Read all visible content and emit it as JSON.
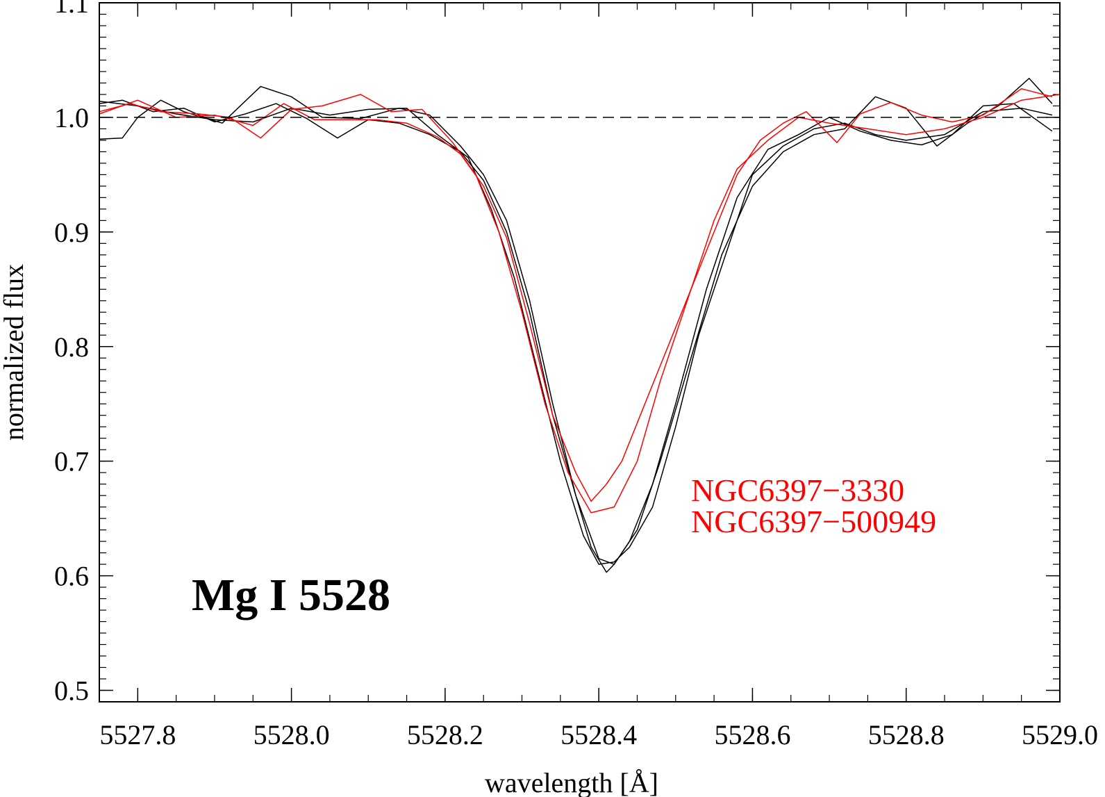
{
  "chart_data": {
    "type": "line",
    "title": "Mg I 5528",
    "xlabel": "wavelength [Å]",
    "ylabel": "normalized flux",
    "xlim": [
      5527.75,
      5529.0
    ],
    "ylim": [
      0.49,
      1.1
    ],
    "x_ticks": [
      5527.8,
      5528.0,
      5528.2,
      5528.4,
      5528.6,
      5528.8,
      5529.0
    ],
    "x_tick_labels": [
      "5527.8",
      "5528.0",
      "5528.2",
      "5528.4",
      "5528.6",
      "5528.8",
      "5529.0"
    ],
    "y_ticks": [
      0.5,
      0.6,
      0.7,
      0.8,
      0.9,
      1.0,
      1.1
    ],
    "y_tick_labels": [
      "0.5",
      "0.6",
      "0.7",
      "0.8",
      "0.9",
      "1.0",
      "1.1"
    ],
    "continuum": 1.0,
    "legend": [
      {
        "label": "NGC6397−3330",
        "color": "#ff0000"
      },
      {
        "label": "NGC6397−500949",
        "color": "#ff0000"
      }
    ],
    "colors": {
      "black": "#000000",
      "red": "#ff0000"
    },
    "series": [
      {
        "name": "black-1",
        "color": "#000000",
        "x": [
          5527.75,
          5527.78,
          5527.8,
          5527.83,
          5527.86,
          5527.91,
          5527.96,
          5528.0,
          5528.04,
          5528.09,
          5528.14,
          5528.18,
          5528.22,
          5528.25,
          5528.28,
          5528.31,
          5528.34,
          5528.37,
          5528.39,
          5528.41,
          5528.42,
          5528.44,
          5528.47,
          5528.5,
          5528.54,
          5528.58,
          5528.62,
          5528.66,
          5528.7,
          5528.74,
          5528.78,
          5528.82,
          5528.86,
          5528.9,
          5528.94,
          5528.99
        ],
        "y": [
          0.981,
          0.982,
          1.0,
          1.015,
          1.005,
          0.995,
          1.027,
          1.018,
          1.0,
          0.999,
          1.008,
          1.002,
          0.975,
          0.95,
          0.91,
          0.84,
          0.75,
          0.67,
          0.625,
          0.603,
          0.61,
          0.63,
          0.68,
          0.75,
          0.85,
          0.93,
          0.972,
          0.985,
          1.0,
          0.988,
          0.98,
          0.976,
          0.985,
          1.01,
          1.012,
          0.988
        ]
      },
      {
        "name": "black-2",
        "color": "#000000",
        "x": [
          5527.75,
          5527.78,
          5527.82,
          5527.86,
          5527.9,
          5527.94,
          5527.98,
          5528.02,
          5528.06,
          5528.1,
          5528.14,
          5528.18,
          5528.22,
          5528.25,
          5528.28,
          5528.31,
          5528.34,
          5528.37,
          5528.4,
          5528.42,
          5528.45,
          5528.48,
          5528.52,
          5528.56,
          5528.6,
          5528.64,
          5528.68,
          5528.72,
          5528.76,
          5528.8,
          5528.84,
          5528.88,
          5528.92,
          5528.96,
          5528.99
        ],
        "y": [
          1.012,
          1.015,
          1.005,
          1.008,
          0.996,
          1.003,
          1.012,
          0.999,
          0.982,
          0.998,
          0.995,
          0.985,
          0.97,
          0.945,
          0.9,
          0.83,
          0.74,
          0.67,
          0.615,
          0.61,
          0.64,
          0.7,
          0.79,
          0.88,
          0.94,
          0.97,
          0.985,
          0.99,
          1.018,
          1.008,
          0.975,
          0.995,
          1.01,
          1.034,
          1.012
        ]
      },
      {
        "name": "black-3",
        "color": "#000000",
        "x": [
          5527.75,
          5527.8,
          5527.85,
          5527.9,
          5527.95,
          5528.0,
          5528.05,
          5528.1,
          5528.15,
          5528.19,
          5528.23,
          5528.26,
          5528.29,
          5528.32,
          5528.35,
          5528.38,
          5528.4,
          5528.42,
          5528.44,
          5528.47,
          5528.5,
          5528.53,
          5528.57,
          5528.6,
          5528.64,
          5528.68,
          5528.72,
          5528.76,
          5528.8,
          5528.85,
          5528.9,
          5528.95,
          5528.99
        ],
        "y": [
          1.014,
          1.01,
          1.003,
          0.998,
          0.996,
          1.008,
          1.002,
          1.007,
          1.008,
          0.985,
          0.965,
          0.92,
          0.86,
          0.78,
          0.7,
          0.635,
          0.61,
          0.612,
          0.625,
          0.66,
          0.73,
          0.81,
          0.89,
          0.95,
          0.975,
          0.99,
          0.995,
          0.985,
          0.98,
          0.985,
          1.005,
          1.008,
          1.002
        ]
      },
      {
        "name": "red-1",
        "color": "#ff0000",
        "x": [
          5527.75,
          5527.8,
          5527.85,
          5527.9,
          5527.95,
          5527.99,
          5528.03,
          5528.07,
          5528.11,
          5528.15,
          5528.19,
          5528.22,
          5528.25,
          5528.28,
          5528.31,
          5528.34,
          5528.37,
          5528.39,
          5528.41,
          5528.43,
          5528.46,
          5528.49,
          5528.52,
          5528.55,
          5528.58,
          5528.61,
          5528.64,
          5528.67,
          5528.71,
          5528.74,
          5528.78,
          5528.82,
          5528.86,
          5528.9,
          5528.95,
          5528.99
        ],
        "y": [
          1.003,
          1.015,
          1.0,
          1.002,
          0.993,
          1.012,
          0.998,
          0.998,
          0.998,
          0.995,
          0.983,
          0.968,
          0.94,
          0.895,
          0.82,
          0.74,
          0.69,
          0.665,
          0.68,
          0.7,
          0.75,
          0.8,
          0.85,
          0.9,
          0.95,
          0.98,
          0.995,
          1.005,
          0.978,
          1.003,
          1.013,
          1.002,
          0.996,
          1.002,
          1.025,
          1.018
        ]
      },
      {
        "name": "red-2",
        "color": "#ff0000",
        "x": [
          5527.75,
          5527.79,
          5527.83,
          5527.88,
          5527.92,
          5527.96,
          5528.0,
          5528.04,
          5528.09,
          5528.13,
          5528.17,
          5528.21,
          5528.24,
          5528.27,
          5528.3,
          5528.33,
          5528.36,
          5528.39,
          5528.42,
          5528.45,
          5528.48,
          5528.51,
          5528.55,
          5528.58,
          5528.62,
          5528.66,
          5528.7,
          5528.75,
          5528.8,
          5528.85,
          5528.9,
          5528.95,
          5529.0
        ],
        "y": [
          1.005,
          1.012,
          1.005,
          1.003,
          1.0,
          0.982,
          1.007,
          1.01,
          1.02,
          1.005,
          1.007,
          0.978,
          0.95,
          0.9,
          0.83,
          0.75,
          0.69,
          0.655,
          0.66,
          0.7,
          0.77,
          0.83,
          0.91,
          0.955,
          0.98,
          1.0,
          0.995,
          0.99,
          0.985,
          0.99,
          1.0,
          1.015,
          1.02
        ]
      }
    ]
  }
}
